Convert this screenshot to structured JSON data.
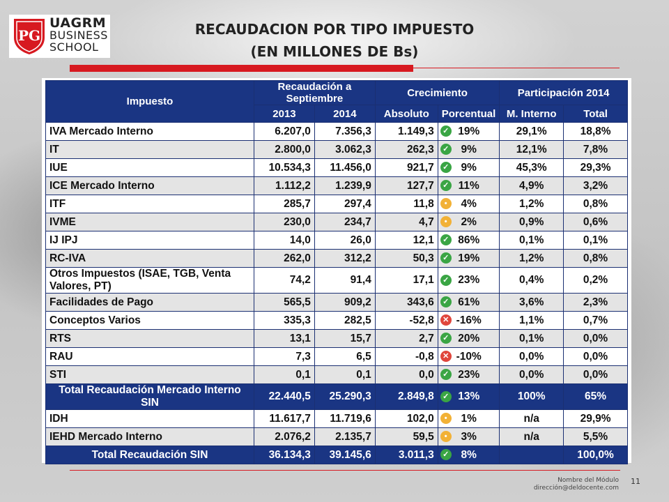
{
  "logo": {
    "line1": "UAGRM",
    "line2": "BUSINESS",
    "line3": "SCHOOL",
    "colors": {
      "red": "#d71920",
      "text": "#222222"
    }
  },
  "title": {
    "line1": "RECAUDACION POR TIPO IMPUESTO",
    "line2": "(EN MILLONES DE Bs)"
  },
  "table": {
    "headers": {
      "impuesto": "Impuesto",
      "recaudacion": "Recaudación a Septiembre",
      "crecimiento": "Crecimiento",
      "participacion": "Participación 2014",
      "y2013": "2013",
      "y2014": "2014",
      "absoluto": "Absoluto",
      "porcentual": "Porcentual",
      "m_interno": "M. Interno",
      "total": "Total"
    },
    "rows": [
      {
        "name": "IVA Mercado Interno",
        "v2013": "6.207,0",
        "v2014": "7.356,3",
        "abs": "1.149,3",
        "icon": "up",
        "pct": "19%",
        "mi": "29,1%",
        "tot": "18,8%"
      },
      {
        "name": "IT",
        "v2013": "2.800,0",
        "v2014": "3.062,3",
        "abs": "262,3",
        "icon": "up",
        "pct": "9%",
        "mi": "12,1%",
        "tot": "7,8%"
      },
      {
        "name": "IUE",
        "v2013": "10.534,3",
        "v2014": "11.456,0",
        "abs": "921,7",
        "icon": "up",
        "pct": "9%",
        "mi": "45,3%",
        "tot": "29,3%"
      },
      {
        "name": "ICE Mercado Interno",
        "v2013": "1.112,2",
        "v2014": "1.239,9",
        "abs": "127,7",
        "icon": "up",
        "pct": "11%",
        "mi": "4,9%",
        "tot": "3,2%"
      },
      {
        "name": "ITF",
        "v2013": "285,7",
        "v2014": "297,4",
        "abs": "11,8",
        "icon": "mid",
        "pct": "4%",
        "mi": "1,2%",
        "tot": "0,8%"
      },
      {
        "name": "IVME",
        "v2013": "230,0",
        "v2014": "234,7",
        "abs": "4,7",
        "icon": "mid",
        "pct": "2%",
        "mi": "0,9%",
        "tot": "0,6%"
      },
      {
        "name": "IJ IPJ",
        "v2013": "14,0",
        "v2014": "26,0",
        "abs": "12,1",
        "icon": "up",
        "pct": "86%",
        "mi": "0,1%",
        "tot": "0,1%"
      },
      {
        "name": "RC-IVA",
        "v2013": "262,0",
        "v2014": "312,2",
        "abs": "50,3",
        "icon": "up",
        "pct": "19%",
        "mi": "1,2%",
        "tot": "0,8%"
      },
      {
        "name": "Otros Impuestos (ISAE, TGB, Venta Valores, PT)",
        "v2013": "74,2",
        "v2014": "91,4",
        "abs": "17,1",
        "icon": "up",
        "pct": "23%",
        "mi": "0,4%",
        "tot": "0,2%"
      },
      {
        "name": "Facilidades de Pago",
        "v2013": "565,5",
        "v2014": "909,2",
        "abs": "343,6",
        "icon": "up",
        "pct": "61%",
        "mi": "3,6%",
        "tot": "2,3%"
      },
      {
        "name": "Conceptos Varios",
        "v2013": "335,3",
        "v2014": "282,5",
        "abs": "-52,8",
        "icon": "down",
        "pct": "-16%",
        "mi": "1,1%",
        "tot": "0,7%"
      },
      {
        "name": "RTS",
        "v2013": "13,1",
        "v2014": "15,7",
        "abs": "2,7",
        "icon": "up",
        "pct": "20%",
        "mi": "0,1%",
        "tot": "0,0%"
      },
      {
        "name": "RAU",
        "v2013": "7,3",
        "v2014": "6,5",
        "abs": "-0,8",
        "icon": "down",
        "pct": "-10%",
        "mi": "0,0%",
        "tot": "0,0%"
      },
      {
        "name": "STI",
        "v2013": "0,1",
        "v2014": "0,1",
        "abs": "0,0",
        "icon": "up",
        "pct": "23%",
        "mi": "0,0%",
        "tot": "0,0%"
      }
    ],
    "subtotal": {
      "name": "Total Recaudación Mercado Interno SIN",
      "v2013": "22.440,5",
      "v2014": "25.290,3",
      "abs": "2.849,8",
      "icon": "up",
      "pct": "13%",
      "mi": "100%",
      "tot": "65%"
    },
    "rows2": [
      {
        "name": "IDH",
        "v2013": "11.617,7",
        "v2014": "11.719,6",
        "abs": "102,0",
        "icon": "mid",
        "pct": "1%",
        "mi": "n/a",
        "tot": "29,9%"
      },
      {
        "name": "IEHD Mercado Interno",
        "v2013": "2.076,2",
        "v2014": "2.135,7",
        "abs": "59,5",
        "icon": "mid",
        "pct": "3%",
        "mi": "n/a",
        "tot": "5,5%"
      }
    ],
    "total": {
      "name": "Total Recaudación SIN",
      "v2013": "36.134,3",
      "v2014": "39.145,6",
      "abs": "3.011,3",
      "icon": "up",
      "pct": "8%",
      "mi": "",
      "tot": "100,0%"
    }
  },
  "footer": {
    "module": "Nombre del Módulo",
    "email": "dirección@deldocente.com",
    "page": "11"
  }
}
